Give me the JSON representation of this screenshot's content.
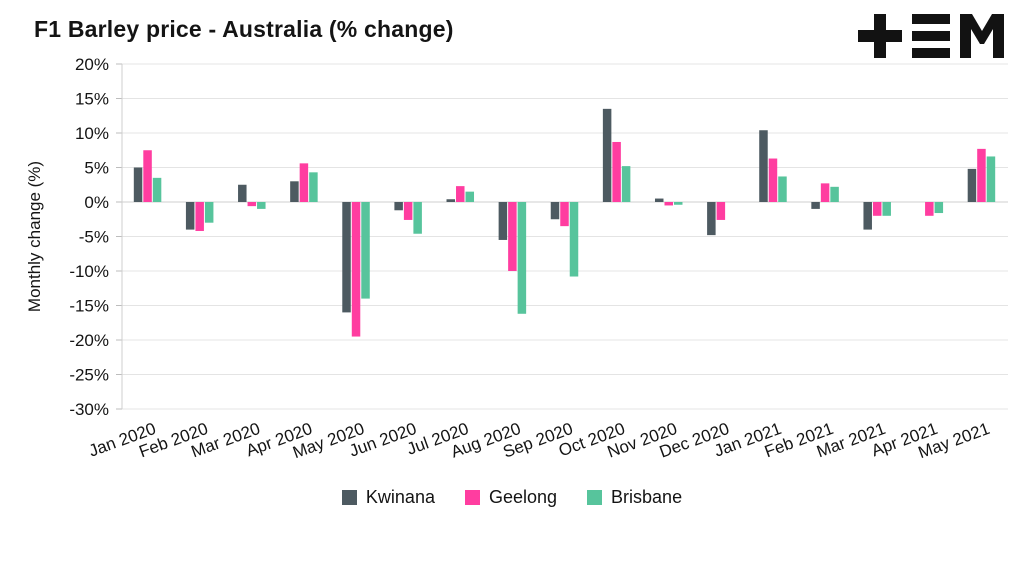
{
  "title": "F1 Barley price - Australia (% change)",
  "logo": {
    "name": "tem-logo"
  },
  "chart_data": {
    "type": "bar",
    "title": "F1 Barley price - Australia (% change)",
    "xlabel": "",
    "ylabel": "Monthly change (%)",
    "ylim": [
      -30,
      20
    ],
    "ytick_step": 5,
    "grid": true,
    "legend_position": "bottom",
    "categories": [
      "Jan 2020",
      "Feb 2020",
      "Mar 2020",
      "Apr 2020",
      "May 2020",
      "Jun 2020",
      "Jul 2020",
      "Aug 2020",
      "Sep 2020",
      "Oct 2020",
      "Nov 2020",
      "Dec 2020",
      "Jan 2021",
      "Feb 2021",
      "Mar 2021",
      "Apr 2021",
      "May 2021"
    ],
    "series": [
      {
        "name": "Kwinana",
        "color": "#4d5a61",
        "values": [
          5.0,
          -4.0,
          2.5,
          3.0,
          -16.0,
          -1.2,
          0.4,
          -5.5,
          -2.5,
          13.5,
          0.5,
          -4.8,
          10.4,
          -1.0,
          -4.0,
          0.0,
          4.8
        ]
      },
      {
        "name": "Geelong",
        "color": "#ff3da0",
        "values": [
          7.5,
          -4.2,
          -0.6,
          5.6,
          -19.5,
          -2.6,
          2.3,
          -10.0,
          -3.5,
          8.7,
          -0.5,
          -2.6,
          6.3,
          2.7,
          -2.0,
          -2.0,
          7.7
        ]
      },
      {
        "name": "Brisbane",
        "color": "#57c49c",
        "values": [
          3.5,
          -3.0,
          -1.0,
          4.3,
          -14.0,
          -4.6,
          1.5,
          -16.2,
          -10.8,
          5.2,
          -0.4,
          0.0,
          3.7,
          2.2,
          -2.0,
          -1.6,
          6.6
        ]
      }
    ]
  }
}
